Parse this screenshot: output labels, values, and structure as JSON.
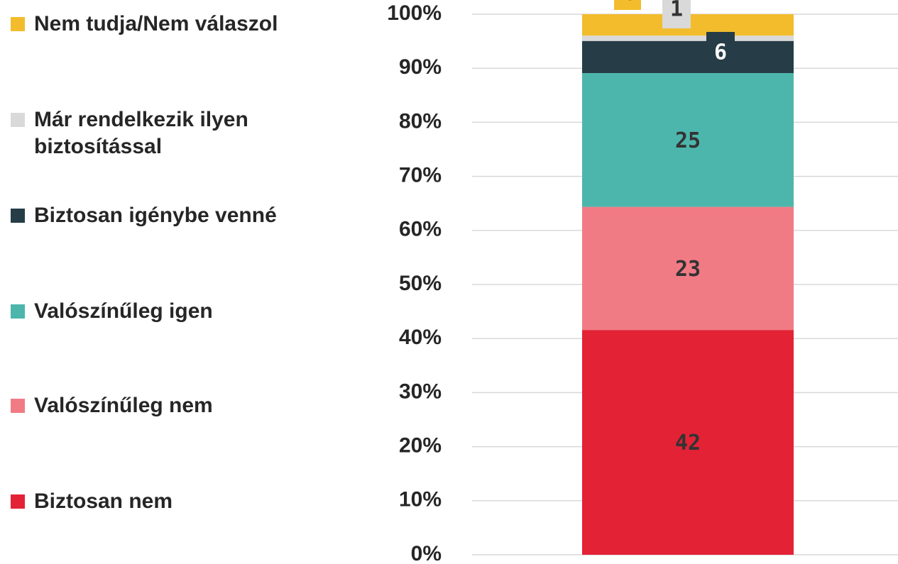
{
  "chart_data": {
    "type": "bar",
    "stacked": "percent",
    "categories": [
      null
    ],
    "series": [
      {
        "name": "Biztosan nem",
        "color": "#e32236",
        "values": [
          42
        ]
      },
      {
        "name": "Valószínűleg nem",
        "color": "#f07b85",
        "values": [
          23
        ]
      },
      {
        "name": "Valószínűleg igen",
        "color": "#4db6ac",
        "values": [
          25
        ]
      },
      {
        "name": "Biztosan igénybe venné",
        "color": "#263d47",
        "values": [
          6
        ]
      },
      {
        "name": "Már rendelkezik ilyen biztosítással",
        "color": "#d9d9d9",
        "values": [
          1
        ]
      },
      {
        "name": "Nem tudja/Nem válaszol",
        "color": "#f2bc2c",
        "values": [
          4
        ]
      }
    ],
    "ylim": [
      0,
      100
    ],
    "yticks": [
      {
        "value": 0,
        "label": "0%"
      },
      {
        "value": 10,
        "label": "10%"
      },
      {
        "value": 20,
        "label": "20%"
      },
      {
        "value": 30,
        "label": "30%"
      },
      {
        "value": 40,
        "label": "40%"
      },
      {
        "value": 50,
        "label": "50%"
      },
      {
        "value": 60,
        "label": "60%"
      },
      {
        "value": 70,
        "label": "70%"
      },
      {
        "value": 80,
        "label": "80%"
      },
      {
        "value": 90,
        "label": "90%"
      },
      {
        "value": 100,
        "label": "100%"
      }
    ],
    "grid": true,
    "legend": "left"
  }
}
